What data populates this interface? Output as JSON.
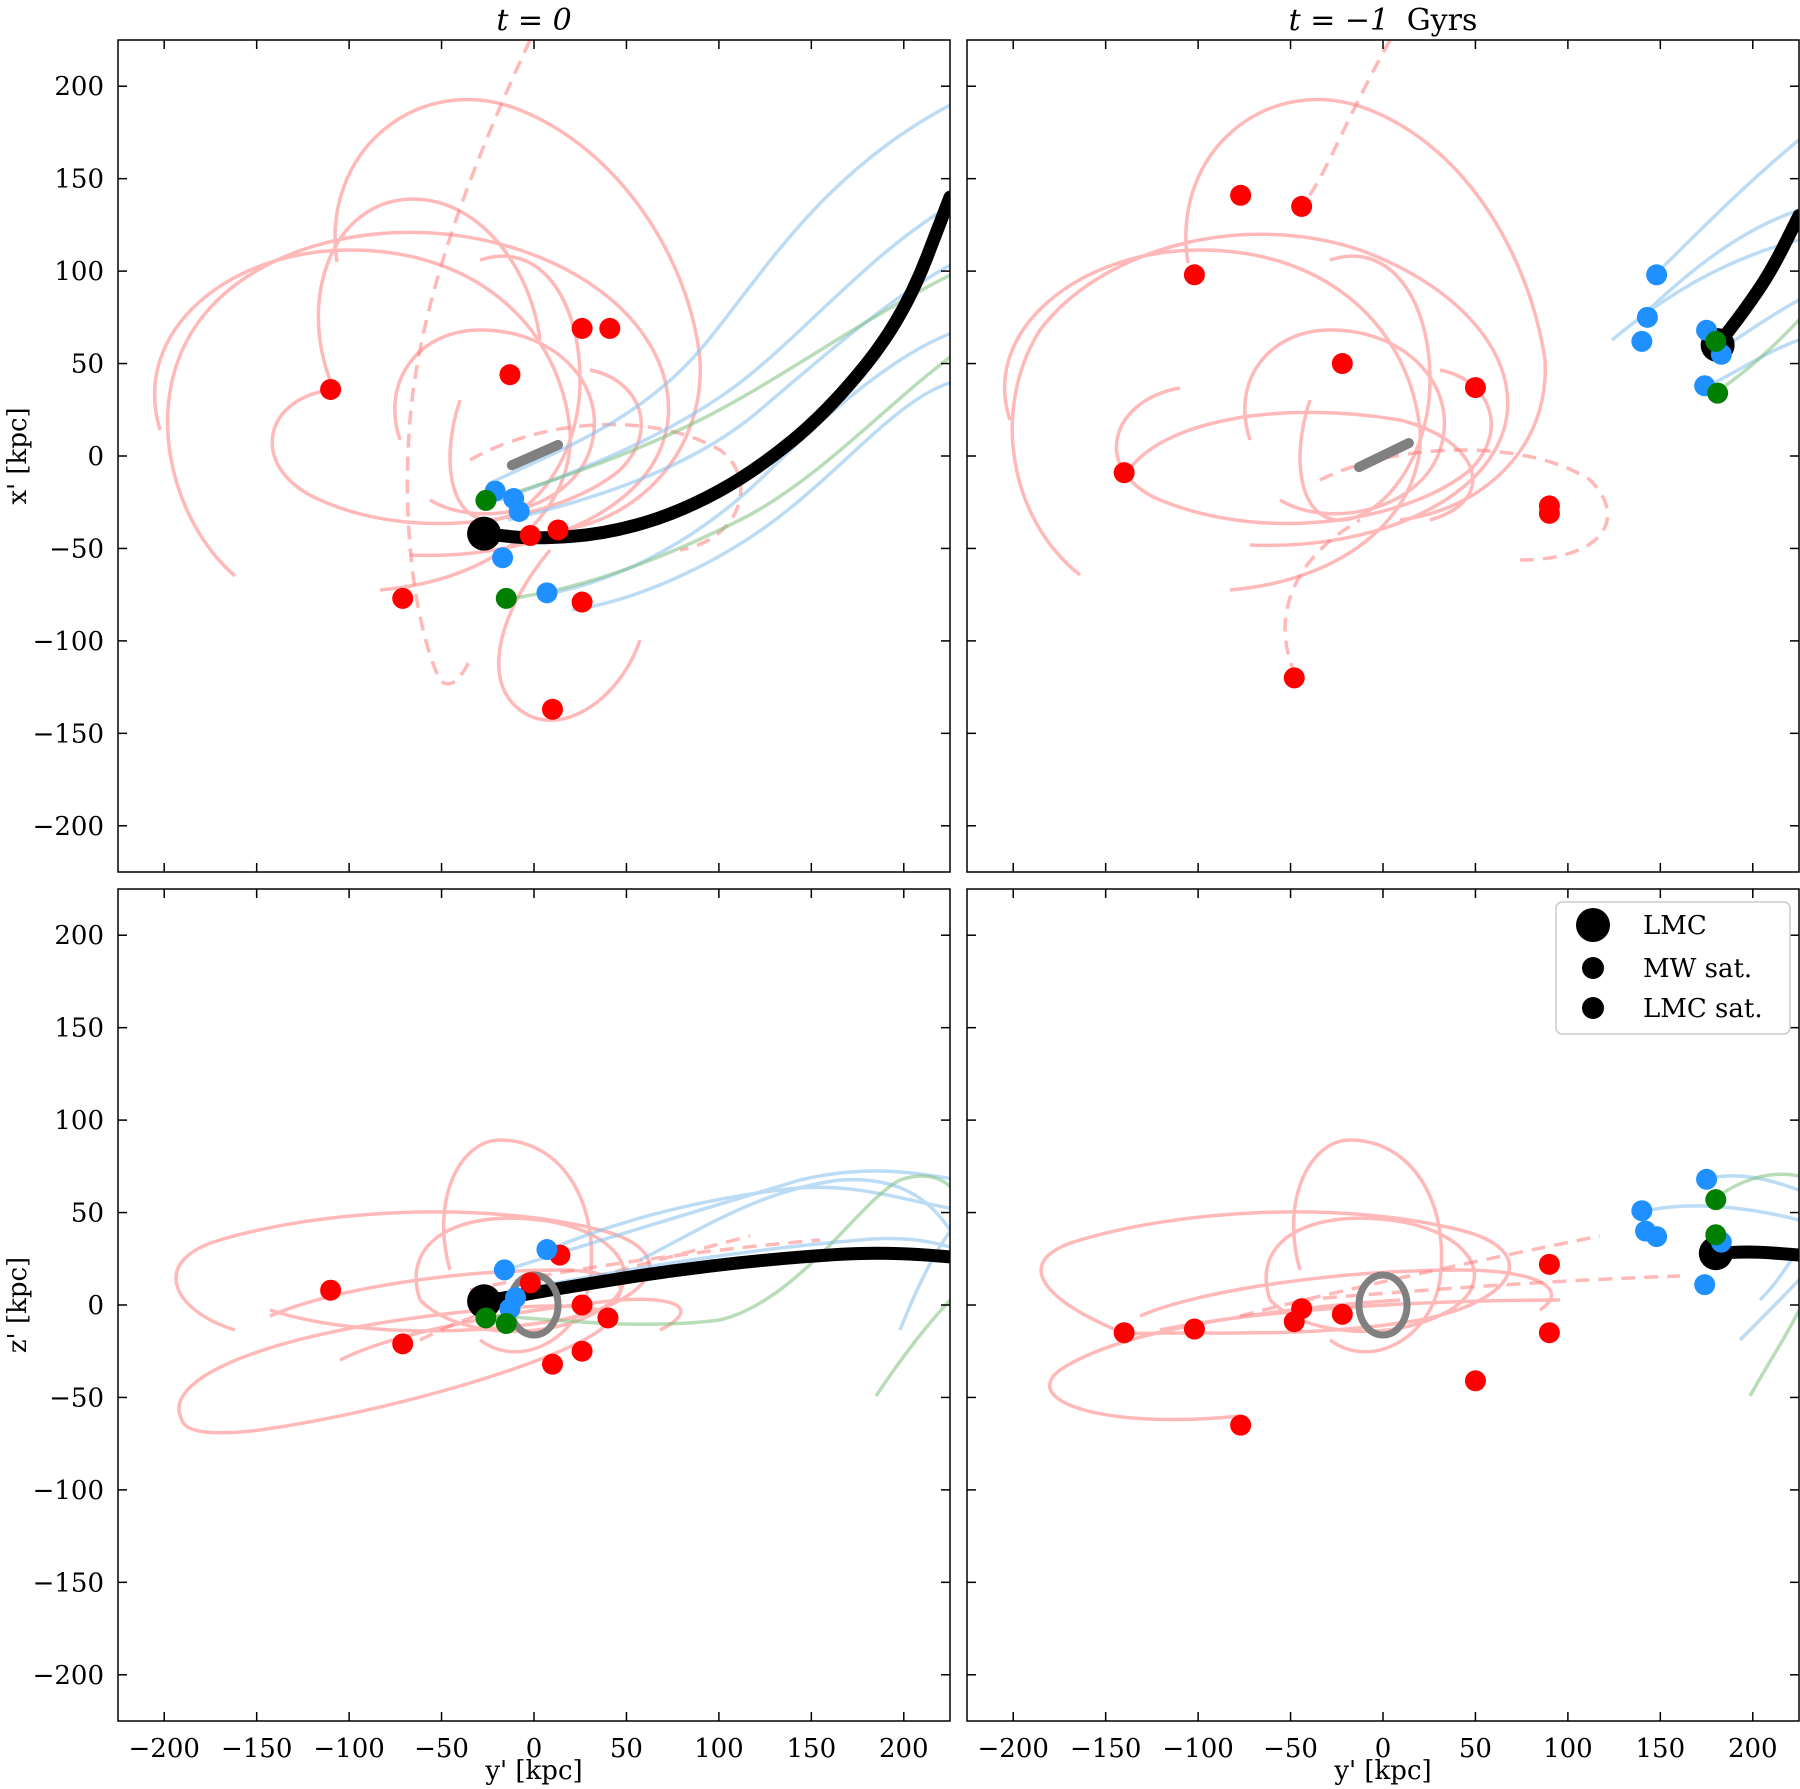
{
  "chart_data": {
    "type": "scatter",
    "figure": "LMC and Milky Way satellite orbits",
    "xlabel": "y' [kpc]",
    "colors": {
      "lmc": "#000000",
      "mw_sat": "#ff0000",
      "lmc_sat": "#1e90ff",
      "lmc_sat_green": "#008000",
      "mw_disk": "#808080",
      "mw_orbit": "#ff8080",
      "lmc_orbit": "#87c1f0",
      "green_orbit": "#80c080"
    },
    "legend": {
      "position": "top-right of bottom-right panel",
      "entries": [
        {
          "label": "LMC",
          "color": "#000000",
          "marker": "large"
        },
        {
          "label": "MW sat.",
          "color": "#ff0000",
          "marker": "small"
        },
        {
          "label": "LMC sat.",
          "color": "#1e90ff",
          "marker": "small"
        }
      ]
    },
    "panels": [
      {
        "id": "top-left",
        "title_math": "t = 0",
        "title_suffix": "",
        "ylabel": "x' [kpc]",
        "xlim": [
          -225,
          225
        ],
        "ylim": [
          -225,
          225
        ],
        "xticks": [
          -200,
          -150,
          -100,
          -50,
          0,
          50,
          100,
          150,
          200
        ],
        "yticks": [
          -200,
          -150,
          -100,
          -50,
          0,
          50,
          100,
          150,
          200
        ],
        "show_xticklabels": false,
        "show_yticklabels": true,
        "lmc": [
          -27,
          -42
        ],
        "lmc_track": [
          [
            -27,
            -42
          ],
          [
            0,
            -45
          ],
          [
            40,
            -42
          ],
          [
            80,
            -30
          ],
          [
            120,
            -8
          ],
          [
            160,
            25
          ],
          [
            200,
            75
          ],
          [
            225,
            140
          ]
        ],
        "disk": {
          "shape": "line",
          "from": [
            -12,
            -5
          ],
          "to": [
            13,
            6
          ]
        },
        "mw_sats": [
          [
            -110,
            36
          ],
          [
            -13,
            44
          ],
          [
            26,
            69
          ],
          [
            41,
            69
          ],
          [
            -71,
            -77
          ],
          [
            -2,
            -43
          ],
          [
            13,
            -40
          ],
          [
            26,
            -79
          ],
          [
            10,
            -137
          ]
        ],
        "lmc_sats": [
          [
            -21,
            -19
          ],
          [
            -11,
            -23
          ],
          [
            -8,
            -30
          ],
          [
            -17,
            -55
          ],
          [
            7,
            -74
          ]
        ],
        "lmc_sats_green": [
          [
            -26,
            -24
          ],
          [
            -15,
            -77
          ]
        ]
      },
      {
        "id": "top-right",
        "title_math": "t = −1",
        "title_suffix": "Gyrs",
        "ylabel": "",
        "xlim": [
          -225,
          225
        ],
        "ylim": [
          -225,
          225
        ],
        "xticks": [
          -200,
          -150,
          -100,
          -50,
          0,
          50,
          100,
          150,
          200
        ],
        "yticks": [
          -200,
          -150,
          -100,
          -50,
          0,
          50,
          100,
          150,
          200
        ],
        "show_xticklabels": false,
        "show_yticklabels": false,
        "lmc": [
          181,
          60
        ],
        "lmc_track": [
          [
            181,
            60
          ],
          [
            195,
            78
          ],
          [
            210,
            100
          ],
          [
            225,
            130
          ]
        ],
        "disk": {
          "shape": "line",
          "from": [
            -13,
            -6
          ],
          "to": [
            14,
            7
          ]
        },
        "mw_sats": [
          [
            -77,
            141
          ],
          [
            -44,
            135
          ],
          [
            -102,
            98
          ],
          [
            -22,
            50
          ],
          [
            50,
            37
          ],
          [
            -140,
            -9
          ],
          [
            90,
            -27
          ],
          [
            90,
            -31
          ],
          [
            -48,
            -120
          ]
        ],
        "lmc_sats": [
          [
            148,
            98
          ],
          [
            143,
            75
          ],
          [
            140,
            62
          ],
          [
            175,
            68
          ],
          [
            183,
            55
          ],
          [
            174,
            38
          ]
        ],
        "lmc_sats_green": [
          [
            180,
            62
          ],
          [
            181,
            34
          ]
        ]
      },
      {
        "id": "bottom-left",
        "title_math": "",
        "title_suffix": "",
        "ylabel": "z' [kpc]",
        "xlim": [
          -225,
          225
        ],
        "ylim": [
          -225,
          225
        ],
        "xticks": [
          -200,
          -150,
          -100,
          -50,
          0,
          50,
          100,
          150,
          200
        ],
        "yticks": [
          -200,
          -150,
          -100,
          -50,
          0,
          50,
          100,
          150,
          200
        ],
        "show_xticklabels": true,
        "show_yticklabels": true,
        "lmc": [
          -27,
          2
        ],
        "lmc_track": [
          [
            -27,
            2
          ],
          [
            20,
            10
          ],
          [
            70,
            18
          ],
          [
            120,
            24
          ],
          [
            170,
            28
          ],
          [
            200,
            28
          ],
          [
            225,
            26
          ]
        ],
        "disk": {
          "shape": "ring",
          "center": [
            0,
            0
          ],
          "rx": 13,
          "ry": 13
        },
        "mw_sats": [
          [
            -110,
            8
          ],
          [
            14,
            27
          ],
          [
            -2,
            12
          ],
          [
            26,
            0
          ],
          [
            40,
            -7
          ],
          [
            -71,
            -21
          ],
          [
            26,
            -25
          ],
          [
            10,
            -32
          ]
        ],
        "lmc_sats": [
          [
            7,
            30
          ],
          [
            -16,
            19
          ],
          [
            -10,
            4
          ],
          [
            -13,
            -2
          ]
        ],
        "lmc_sats_green": [
          [
            -26,
            -7
          ],
          [
            -15,
            -10
          ]
        ]
      },
      {
        "id": "bottom-right",
        "title_math": "",
        "title_suffix": "",
        "ylabel": "",
        "xlim": [
          -225,
          225
        ],
        "ylim": [
          -225,
          225
        ],
        "xticks": [
          -200,
          -150,
          -100,
          -50,
          0,
          50,
          100,
          150,
          200
        ],
        "yticks": [
          -200,
          -150,
          -100,
          -50,
          0,
          50,
          100,
          150,
          200
        ],
        "show_xticklabels": true,
        "show_yticklabels": false,
        "lmc": [
          180,
          28
        ],
        "lmc_track": [
          [
            180,
            28
          ],
          [
            200,
            29
          ],
          [
            225,
            27
          ]
        ],
        "disk": {
          "shape": "ring",
          "center": [
            0,
            0
          ],
          "rx": 13,
          "ry": 13
        },
        "mw_sats": [
          [
            -140,
            -15
          ],
          [
            -102,
            -13
          ],
          [
            -44,
            -2
          ],
          [
            -48,
            -9
          ],
          [
            -22,
            -5
          ],
          [
            90,
            22
          ],
          [
            90,
            -15
          ],
          [
            50,
            -41
          ],
          [
            -77,
            -65
          ]
        ],
        "lmc_sats": [
          [
            175,
            68
          ],
          [
            140,
            51
          ],
          [
            142,
            40
          ],
          [
            148,
            37
          ],
          [
            183,
            34
          ],
          [
            174,
            11
          ]
        ],
        "lmc_sats_green": [
          [
            180,
            57
          ],
          [
            180,
            38
          ]
        ]
      }
    ]
  }
}
